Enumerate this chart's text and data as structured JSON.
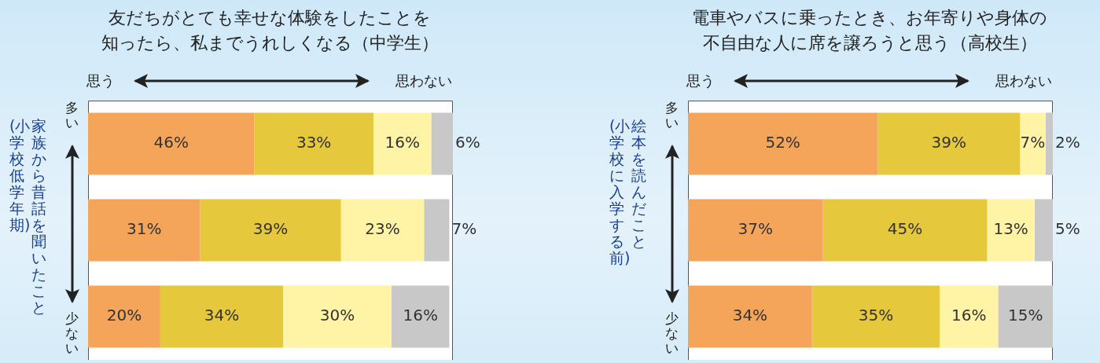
{
  "chart_data": [
    {
      "type": "bar",
      "orientation": "horizontal",
      "stacked": true,
      "title": "友だちがとても幸せな体験をしたことを",
      "subtitle": "知ったら、私までうれしくなる（中学生）",
      "ylabel": "家族から昔話を聞いたこと\n(小学校低学年期)",
      "annotations": [
        "思う",
        "思わない",
        "多い",
        "少ない"
      ],
      "categories": [
        null,
        null,
        null
      ],
      "xlim": [
        0,
        101
      ],
      "tick_labels": false,
      "series": [
        {
          "color": "#f5a55a",
          "values": [
            46,
            31,
            20
          ],
          "value_labels": [
            "46%",
            "31%",
            "20%"
          ]
        },
        {
          "color": "#e6c83c",
          "values": [
            33,
            39,
            34
          ],
          "value_labels": [
            "33%",
            "39%",
            "34%"
          ]
        },
        {
          "color": "#fff4a6",
          "values": [
            16,
            23,
            30
          ],
          "value_labels": [
            "16%",
            "23%",
            "30%"
          ]
        },
        {
          "color": "#c8c8c8",
          "values": [
            6,
            7,
            16
          ],
          "value_labels": [
            "6%",
            "7%",
            "16%"
          ]
        }
      ]
    },
    {
      "type": "bar",
      "orientation": "horizontal",
      "stacked": true,
      "title": "電車やバスに乗ったとき、お年寄りや身体の",
      "subtitle": "不自由な人に席を譲ろうと思う（高校生）",
      "ylabel": "絵本を読んだこと\n(小学校に入学する前)",
      "annotations": [
        "思う",
        "思わない",
        "多い",
        "少ない"
      ],
      "categories": [
        null,
        null,
        null
      ],
      "xlim": [
        0,
        100
      ],
      "tick_labels": false,
      "series": [
        {
          "color": "#f5a55a",
          "values": [
            52,
            37,
            34
          ],
          "value_labels": [
            "52%",
            "37%",
            "34%"
          ]
        },
        {
          "color": "#e6c83c",
          "values": [
            39,
            45,
            35
          ],
          "value_labels": [
            "39%",
            "45%",
            "35%"
          ]
        },
        {
          "color": "#fff4a6",
          "values": [
            7,
            13,
            16
          ],
          "value_labels": [
            "7%",
            "13%",
            "16%"
          ]
        },
        {
          "color": "#c8c8c8",
          "values": [
            2,
            5,
            15
          ],
          "value_labels": [
            "2%",
            "5%",
            "15%"
          ]
        }
      ]
    }
  ]
}
